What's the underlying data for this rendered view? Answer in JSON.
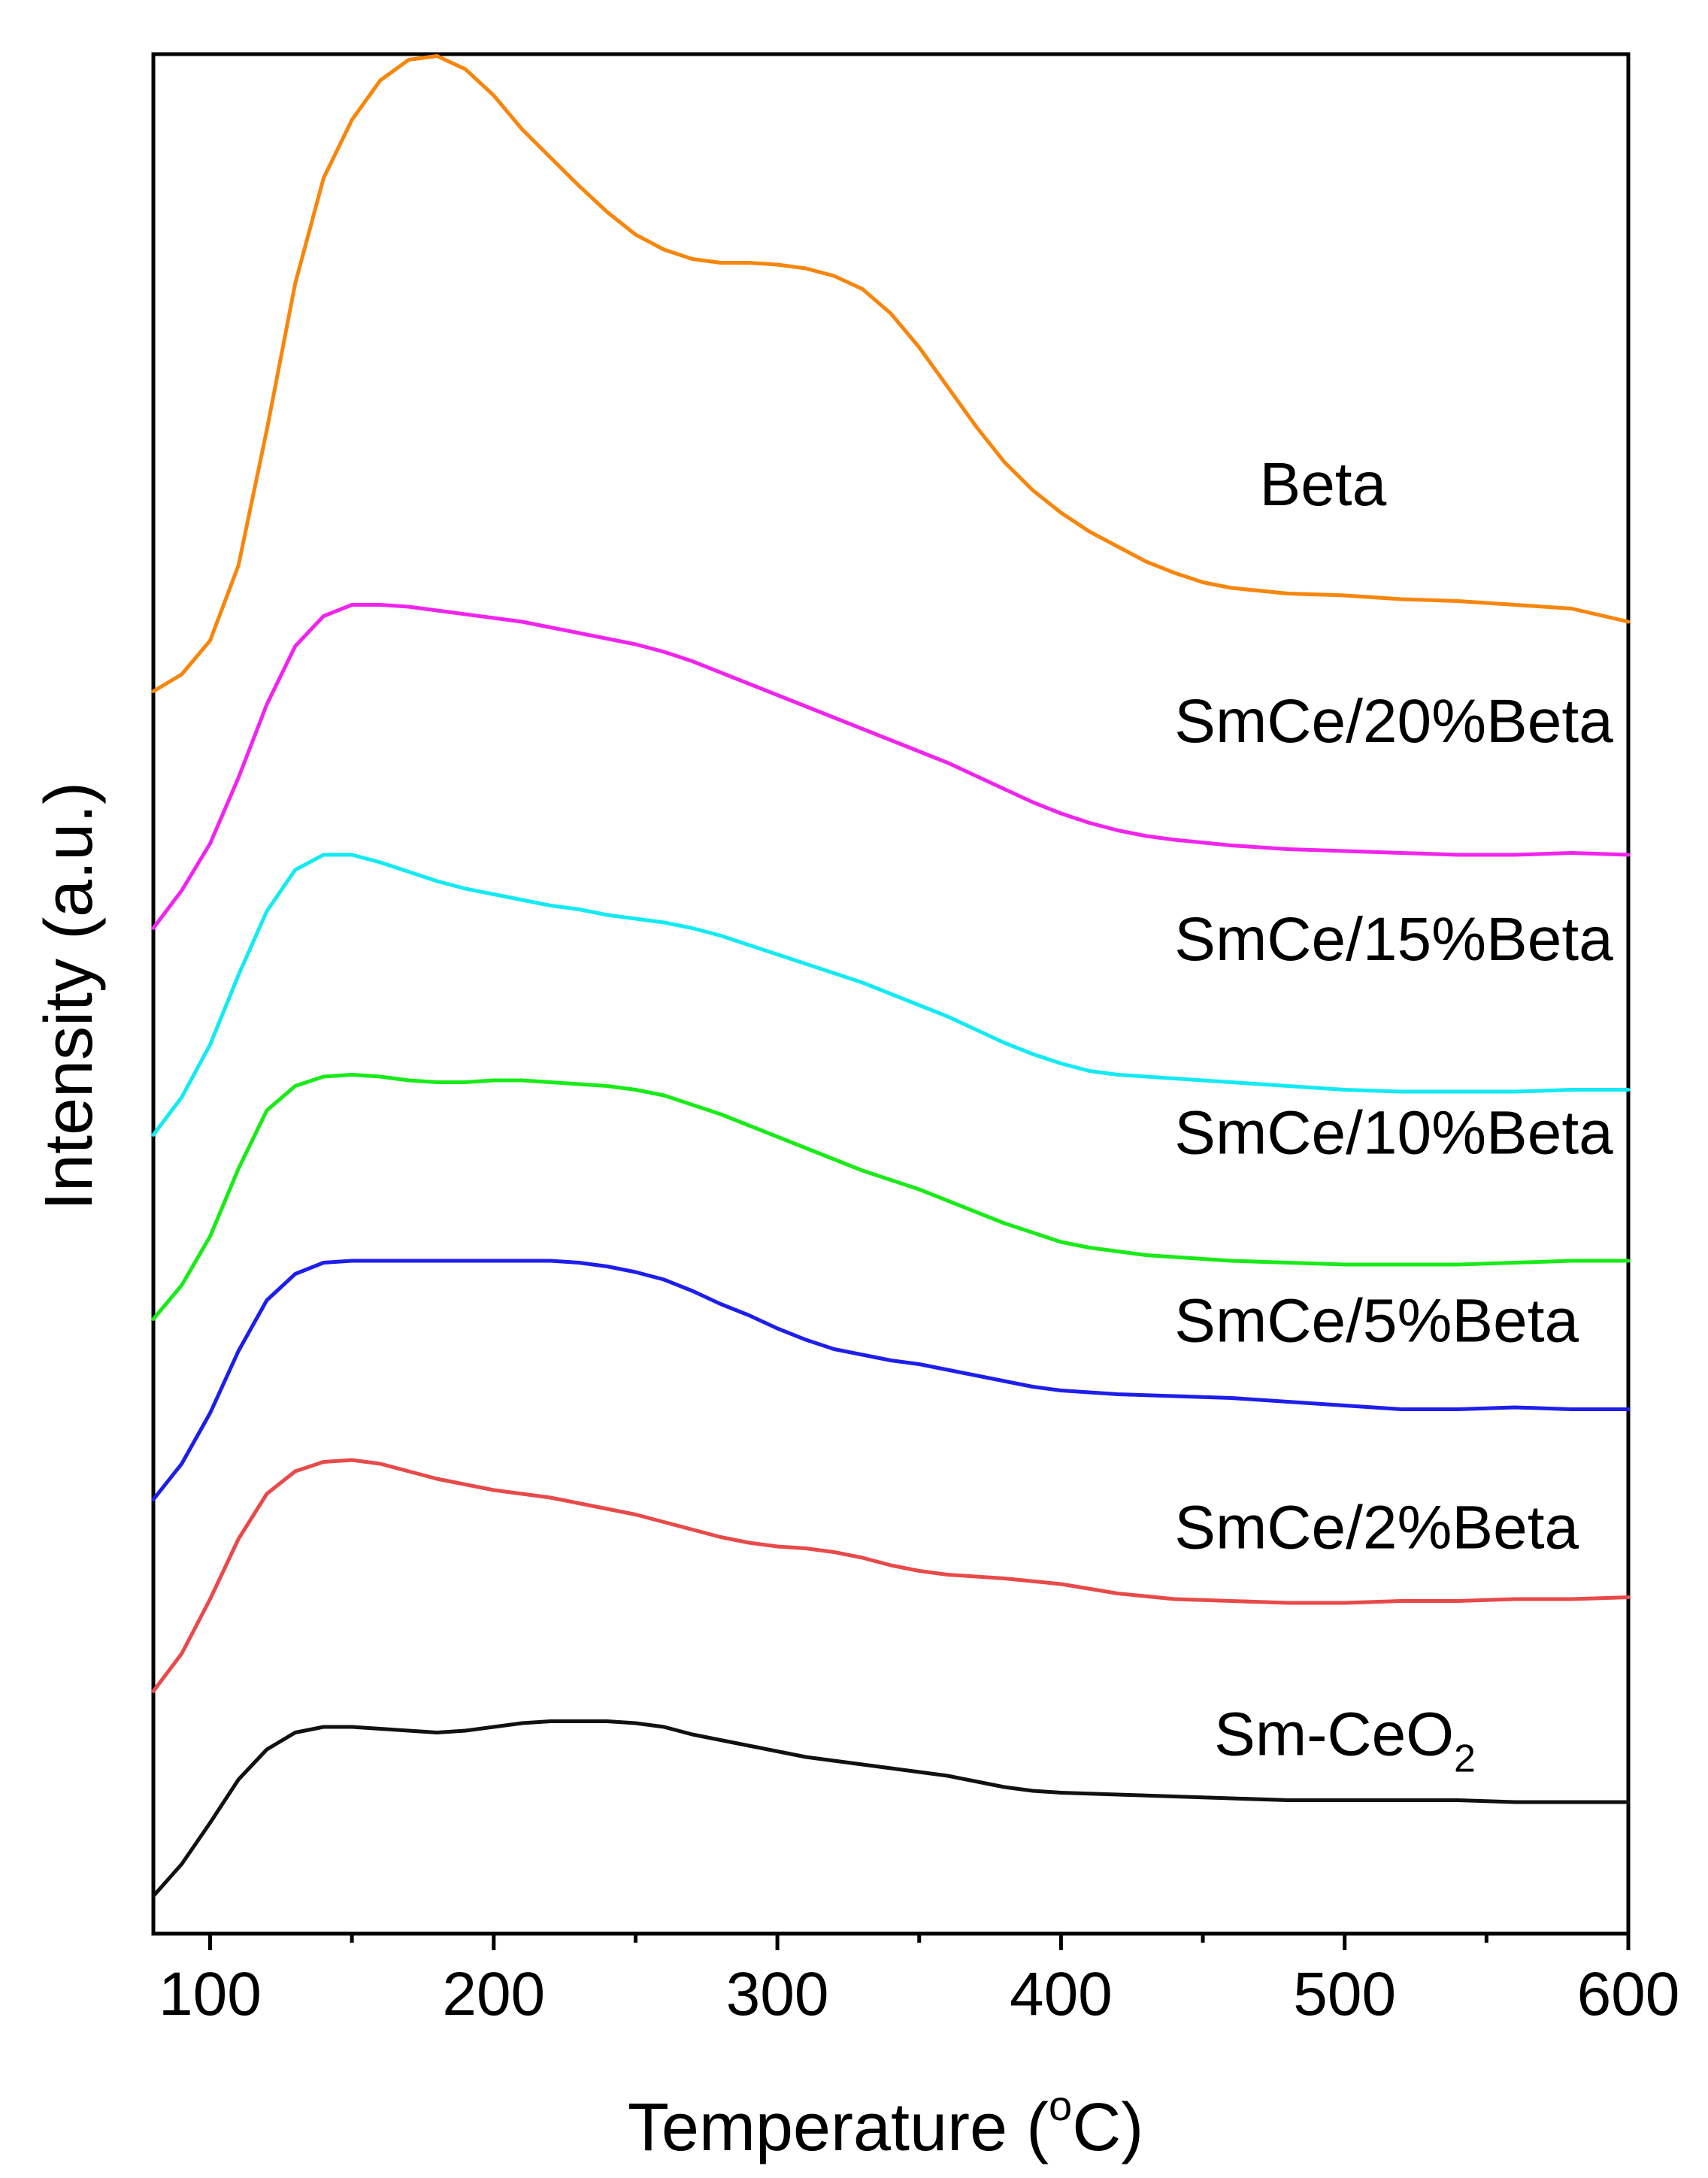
{
  "chart_data": {
    "type": "line",
    "title": "",
    "xlabel": "Temperature (",
    "xlabel_sup": "o",
    "xlabel_end": "C)",
    "ylabel": "Intensity (a.u.)",
    "xlim": [
      80,
      600
    ],
    "ylim": [
      0,
      100
    ],
    "xticks": [
      100,
      200,
      300,
      400,
      500,
      600
    ],
    "x_minor_ticks": [
      150,
      250,
      350,
      450,
      550
    ],
    "grid": false,
    "series": [
      {
        "name": "Beta",
        "label": "Beta",
        "color": "#f7860c",
        "label_x": 470,
        "label_y": 76,
        "points": [
          [
            80,
            66.1
          ],
          [
            90,
            67
          ],
          [
            100,
            68.8
          ],
          [
            110,
            72.8
          ],
          [
            120,
            80
          ],
          [
            130,
            87.8
          ],
          [
            140,
            93.4
          ],
          [
            150,
            96.5
          ],
          [
            160,
            98.6
          ],
          [
            170,
            99.7
          ],
          [
            180,
            99.9
          ],
          [
            190,
            99.2
          ],
          [
            200,
            97.8
          ],
          [
            210,
            96
          ],
          [
            220,
            94.5
          ],
          [
            230,
            93
          ],
          [
            240,
            91.6
          ],
          [
            250,
            90.4
          ],
          [
            260,
            89.6
          ],
          [
            270,
            89.1
          ],
          [
            280,
            88.9
          ],
          [
            290,
            88.9
          ],
          [
            300,
            88.8
          ],
          [
            310,
            88.6
          ],
          [
            320,
            88.2
          ],
          [
            330,
            87.5
          ],
          [
            340,
            86.2
          ],
          [
            350,
            84.4
          ],
          [
            360,
            82.3
          ],
          [
            370,
            80.2
          ],
          [
            380,
            78.3
          ],
          [
            390,
            76.8
          ],
          [
            400,
            75.6
          ],
          [
            410,
            74.6
          ],
          [
            420,
            73.8
          ],
          [
            430,
            73
          ],
          [
            440,
            72.4
          ],
          [
            450,
            71.9
          ],
          [
            460,
            71.6
          ],
          [
            480,
            71.3
          ],
          [
            500,
            71.2
          ],
          [
            520,
            71
          ],
          [
            540,
            70.9
          ],
          [
            560,
            70.7
          ],
          [
            580,
            70.5
          ],
          [
            600,
            69.8
          ]
        ]
      },
      {
        "name": "SmCe/20%Beta",
        "label": "SmCe/20%Beta",
        "color": "#f025ed",
        "label_x": 440,
        "label_y": 63.4,
        "points": [
          [
            80,
            53.5
          ],
          [
            90,
            55.5
          ],
          [
            100,
            58
          ],
          [
            110,
            61.5
          ],
          [
            120,
            65.4
          ],
          [
            130,
            68.5
          ],
          [
            140,
            70.1
          ],
          [
            150,
            70.7
          ],
          [
            160,
            70.7
          ],
          [
            170,
            70.6
          ],
          [
            180,
            70.4
          ],
          [
            190,
            70.2
          ],
          [
            200,
            70
          ],
          [
            210,
            69.8
          ],
          [
            220,
            69.5
          ],
          [
            230,
            69.2
          ],
          [
            240,
            68.9
          ],
          [
            250,
            68.6
          ],
          [
            260,
            68.2
          ],
          [
            270,
            67.7
          ],
          [
            280,
            67.1
          ],
          [
            290,
            66.5
          ],
          [
            300,
            65.9
          ],
          [
            310,
            65.3
          ],
          [
            320,
            64.7
          ],
          [
            330,
            64.1
          ],
          [
            340,
            63.5
          ],
          [
            350,
            62.9
          ],
          [
            360,
            62.3
          ],
          [
            370,
            61.6
          ],
          [
            380,
            60.9
          ],
          [
            390,
            60.2
          ],
          [
            400,
            59.6
          ],
          [
            410,
            59.1
          ],
          [
            420,
            58.7
          ],
          [
            430,
            58.4
          ],
          [
            440,
            58.2
          ],
          [
            460,
            57.9
          ],
          [
            480,
            57.7
          ],
          [
            500,
            57.6
          ],
          [
            520,
            57.5
          ],
          [
            540,
            57.4
          ],
          [
            560,
            57.4
          ],
          [
            580,
            57.5
          ],
          [
            600,
            57.4
          ]
        ]
      },
      {
        "name": "SmCe/15%Beta",
        "label": "SmCe/15%Beta",
        "color": "#13eaf3",
        "label_x": 440,
        "label_y": 51.8,
        "points": [
          [
            80,
            42.5
          ],
          [
            90,
            44.5
          ],
          [
            100,
            47.3
          ],
          [
            110,
            51
          ],
          [
            120,
            54.4
          ],
          [
            130,
            56.6
          ],
          [
            140,
            57.4
          ],
          [
            150,
            57.4
          ],
          [
            160,
            57
          ],
          [
            170,
            56.5
          ],
          [
            180,
            56
          ],
          [
            190,
            55.6
          ],
          [
            200,
            55.3
          ],
          [
            210,
            55
          ],
          [
            220,
            54.7
          ],
          [
            230,
            54.5
          ],
          [
            240,
            54.2
          ],
          [
            250,
            54
          ],
          [
            260,
            53.8
          ],
          [
            270,
            53.5
          ],
          [
            280,
            53.1
          ],
          [
            290,
            52.6
          ],
          [
            300,
            52.1
          ],
          [
            310,
            51.6
          ],
          [
            320,
            51.1
          ],
          [
            330,
            50.6
          ],
          [
            340,
            50
          ],
          [
            350,
            49.4
          ],
          [
            360,
            48.8
          ],
          [
            370,
            48.1
          ],
          [
            380,
            47.4
          ],
          [
            390,
            46.8
          ],
          [
            400,
            46.3
          ],
          [
            410,
            45.9
          ],
          [
            420,
            45.7
          ],
          [
            430,
            45.6
          ],
          [
            440,
            45.5
          ],
          [
            460,
            45.3
          ],
          [
            480,
            45.1
          ],
          [
            500,
            44.9
          ],
          [
            520,
            44.8
          ],
          [
            540,
            44.8
          ],
          [
            560,
            44.8
          ],
          [
            580,
            44.9
          ],
          [
            600,
            44.9
          ]
        ]
      },
      {
        "name": "SmCe/10%Beta",
        "label": "SmCe/10%Beta",
        "color": "#18eb18",
        "label_x": 440,
        "label_y": 41.5,
        "points": [
          [
            80,
            32.7
          ],
          [
            90,
            34.5
          ],
          [
            100,
            37.1
          ],
          [
            110,
            40.7
          ],
          [
            120,
            43.8
          ],
          [
            130,
            45.1
          ],
          [
            140,
            45.6
          ],
          [
            150,
            45.7
          ],
          [
            160,
            45.6
          ],
          [
            170,
            45.4
          ],
          [
            180,
            45.3
          ],
          [
            190,
            45.3
          ],
          [
            200,
            45.4
          ],
          [
            210,
            45.4
          ],
          [
            220,
            45.3
          ],
          [
            230,
            45.2
          ],
          [
            240,
            45.1
          ],
          [
            250,
            44.9
          ],
          [
            260,
            44.6
          ],
          [
            270,
            44.1
          ],
          [
            280,
            43.6
          ],
          [
            290,
            43
          ],
          [
            300,
            42.4
          ],
          [
            310,
            41.8
          ],
          [
            320,
            41.2
          ],
          [
            330,
            40.6
          ],
          [
            340,
            40.1
          ],
          [
            350,
            39.6
          ],
          [
            360,
            39
          ],
          [
            370,
            38.4
          ],
          [
            380,
            37.8
          ],
          [
            390,
            37.3
          ],
          [
            400,
            36.8
          ],
          [
            410,
            36.5
          ],
          [
            420,
            36.3
          ],
          [
            430,
            36.1
          ],
          [
            440,
            36
          ],
          [
            460,
            35.8
          ],
          [
            480,
            35.7
          ],
          [
            500,
            35.6
          ],
          [
            520,
            35.6
          ],
          [
            540,
            35.6
          ],
          [
            560,
            35.7
          ],
          [
            580,
            35.8
          ],
          [
            600,
            35.8
          ]
        ]
      },
      {
        "name": "SmCe/5%Beta",
        "label": "SmCe/5%Beta",
        "color": "#1e1eeb",
        "label_x": 440,
        "label_y": 31.5,
        "points": [
          [
            80,
            23.1
          ],
          [
            90,
            25
          ],
          [
            100,
            27.7
          ],
          [
            110,
            31
          ],
          [
            120,
            33.7
          ],
          [
            130,
            35.1
          ],
          [
            140,
            35.7
          ],
          [
            150,
            35.8
          ],
          [
            160,
            35.8
          ],
          [
            170,
            35.8
          ],
          [
            180,
            35.8
          ],
          [
            190,
            35.8
          ],
          [
            200,
            35.8
          ],
          [
            210,
            35.8
          ],
          [
            220,
            35.8
          ],
          [
            230,
            35.7
          ],
          [
            240,
            35.5
          ],
          [
            250,
            35.2
          ],
          [
            260,
            34.8
          ],
          [
            270,
            34.2
          ],
          [
            280,
            33.5
          ],
          [
            290,
            32.9
          ],
          [
            300,
            32.2
          ],
          [
            310,
            31.6
          ],
          [
            320,
            31.1
          ],
          [
            330,
            30.8
          ],
          [
            340,
            30.5
          ],
          [
            350,
            30.3
          ],
          [
            360,
            30
          ],
          [
            370,
            29.7
          ],
          [
            380,
            29.4
          ],
          [
            390,
            29.1
          ],
          [
            400,
            28.9
          ],
          [
            420,
            28.7
          ],
          [
            440,
            28.6
          ],
          [
            460,
            28.5
          ],
          [
            480,
            28.3
          ],
          [
            500,
            28.1
          ],
          [
            520,
            27.9
          ],
          [
            540,
            27.9
          ],
          [
            560,
            28
          ],
          [
            580,
            27.9
          ],
          [
            600,
            27.9
          ]
        ]
      },
      {
        "name": "SmCe/2%Beta",
        "label": "SmCe/2%Beta",
        "color": "#e84a4a",
        "label_x": 440,
        "label_y": 20.5,
        "points": [
          [
            80,
            12.9
          ],
          [
            90,
            14.9
          ],
          [
            100,
            17.8
          ],
          [
            110,
            21
          ],
          [
            120,
            23.4
          ],
          [
            130,
            24.6
          ],
          [
            140,
            25.1
          ],
          [
            150,
            25.2
          ],
          [
            160,
            25
          ],
          [
            170,
            24.6
          ],
          [
            180,
            24.2
          ],
          [
            190,
            23.9
          ],
          [
            200,
            23.6
          ],
          [
            210,
            23.4
          ],
          [
            220,
            23.2
          ],
          [
            230,
            22.9
          ],
          [
            240,
            22.6
          ],
          [
            250,
            22.3
          ],
          [
            260,
            21.9
          ],
          [
            270,
            21.5
          ],
          [
            280,
            21.1
          ],
          [
            290,
            20.8
          ],
          [
            300,
            20.6
          ],
          [
            310,
            20.5
          ],
          [
            320,
            20.3
          ],
          [
            330,
            20
          ],
          [
            340,
            19.6
          ],
          [
            350,
            19.3
          ],
          [
            360,
            19.1
          ],
          [
            380,
            18.9
          ],
          [
            400,
            18.6
          ],
          [
            420,
            18.1
          ],
          [
            440,
            17.8
          ],
          [
            460,
            17.7
          ],
          [
            480,
            17.6
          ],
          [
            500,
            17.6
          ],
          [
            520,
            17.7
          ],
          [
            540,
            17.7
          ],
          [
            560,
            17.8
          ],
          [
            580,
            17.8
          ],
          [
            600,
            17.9
          ]
        ]
      },
      {
        "name": "Sm-CeO2",
        "label": "Sm-CeO",
        "label_sub": "2",
        "color": "#111111",
        "label_x": 454,
        "label_y": 9.5,
        "points": [
          [
            80,
            2
          ],
          [
            90,
            3.7
          ],
          [
            100,
            5.9
          ],
          [
            110,
            8.2
          ],
          [
            120,
            9.8
          ],
          [
            130,
            10.7
          ],
          [
            140,
            11
          ],
          [
            150,
            11
          ],
          [
            160,
            10.9
          ],
          [
            170,
            10.8
          ],
          [
            180,
            10.7
          ],
          [
            190,
            10.8
          ],
          [
            200,
            11
          ],
          [
            210,
            11.2
          ],
          [
            220,
            11.3
          ],
          [
            230,
            11.3
          ],
          [
            240,
            11.3
          ],
          [
            250,
            11.2
          ],
          [
            260,
            11
          ],
          [
            270,
            10.6
          ],
          [
            280,
            10.3
          ],
          [
            290,
            10
          ],
          [
            300,
            9.7
          ],
          [
            310,
            9.4
          ],
          [
            320,
            9.2
          ],
          [
            330,
            9
          ],
          [
            340,
            8.8
          ],
          [
            350,
            8.6
          ],
          [
            360,
            8.4
          ],
          [
            370,
            8.1
          ],
          [
            380,
            7.8
          ],
          [
            390,
            7.6
          ],
          [
            400,
            7.5
          ],
          [
            420,
            7.4
          ],
          [
            440,
            7.3
          ],
          [
            460,
            7.2
          ],
          [
            480,
            7.1
          ],
          [
            500,
            7.1
          ],
          [
            520,
            7.1
          ],
          [
            540,
            7.1
          ],
          [
            560,
            7
          ],
          [
            580,
            7
          ],
          [
            600,
            7
          ]
        ]
      }
    ]
  }
}
